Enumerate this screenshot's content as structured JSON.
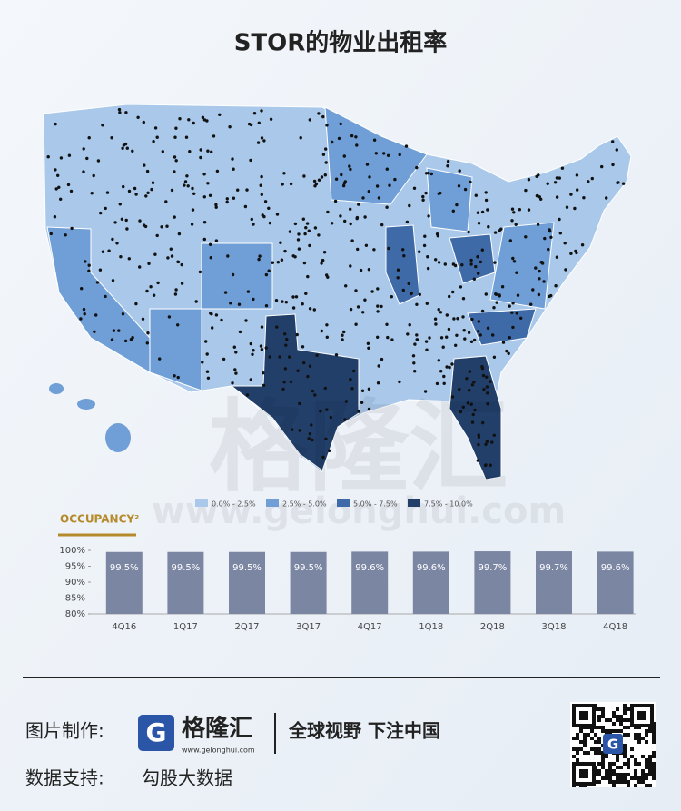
{
  "title": "STOR的物业出租率",
  "map": {
    "legend": [
      {
        "label": "0.0% - 2.5%",
        "color": "#a9c8ea"
      },
      {
        "label": "2.5% - 5.0%",
        "color": "#6f9fd6"
      },
      {
        "label": "5.0% - 7.5%",
        "color": "#3f6aa8"
      },
      {
        "label": "7.5% - 10.0%",
        "color": "#223f6a"
      }
    ]
  },
  "chart_data": {
    "type": "bar",
    "title": "OCCUPANCY²",
    "categories": [
      "4Q16",
      "1Q17",
      "2Q17",
      "3Q17",
      "4Q17",
      "1Q18",
      "2Q18",
      "3Q18",
      "4Q18"
    ],
    "values": [
      99.5,
      99.5,
      99.5,
      99.5,
      99.6,
      99.6,
      99.7,
      99.7,
      99.6
    ],
    "value_labels": [
      "99.5%",
      "99.5%",
      "99.5%",
      "99.5%",
      "99.6%",
      "99.6%",
      "99.7%",
      "99.7%",
      "99.6%"
    ],
    "color": "#7b86a3",
    "ylim": [
      80,
      100
    ],
    "yticks": [
      {
        "value": 80,
        "label": "80%"
      },
      {
        "value": 85,
        "label": "85%"
      },
      {
        "value": 90,
        "label": "90%"
      },
      {
        "value": 95,
        "label": "95%"
      },
      {
        "value": 100,
        "label": "100%"
      }
    ],
    "grid": false
  },
  "watermark": {
    "name": "格隆汇",
    "url": "www.gelonghui.com"
  },
  "footer": {
    "credit_label": "图片制作:",
    "brand_mark": "G",
    "brand": "格隆汇",
    "brand_url": "www.gelonghui.com",
    "slogan": "全球视野 下注中国",
    "source_label": "数据支持:",
    "source": "勾股大数据"
  }
}
